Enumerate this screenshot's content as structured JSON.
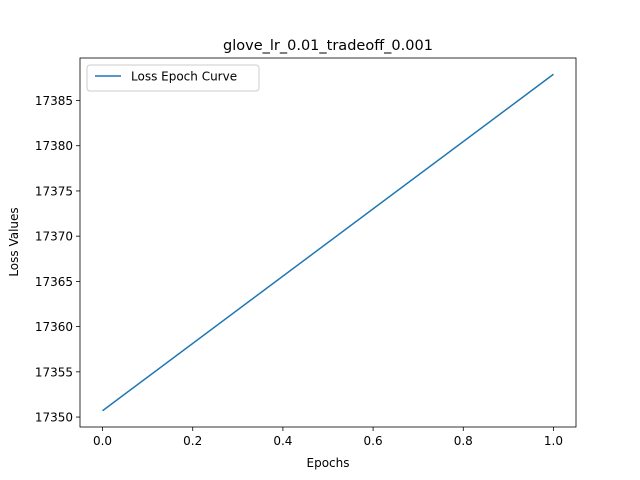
{
  "chart_data": {
    "type": "line",
    "title": "glove_lr_0.01_tradeoff_0.001",
    "xlabel": "Epochs",
    "ylabel": "Loss Values",
    "x_ticks": [
      "0.0",
      "0.2",
      "0.4",
      "0.6",
      "0.8",
      "1.0"
    ],
    "y_ticks": [
      "17350",
      "17355",
      "17360",
      "17365",
      "17370",
      "17375",
      "17380",
      "17385"
    ],
    "xlim": [
      -0.05,
      1.05
    ],
    "ylim": [
      17348.9,
      17389.7
    ],
    "grid": false,
    "legend_position": "upper-left",
    "series": [
      {
        "name": "Loss Epoch Curve",
        "color": "#1f77b4",
        "x": [
          0.0,
          1.0
        ],
        "y": [
          17350.7,
          17387.9
        ]
      }
    ]
  }
}
